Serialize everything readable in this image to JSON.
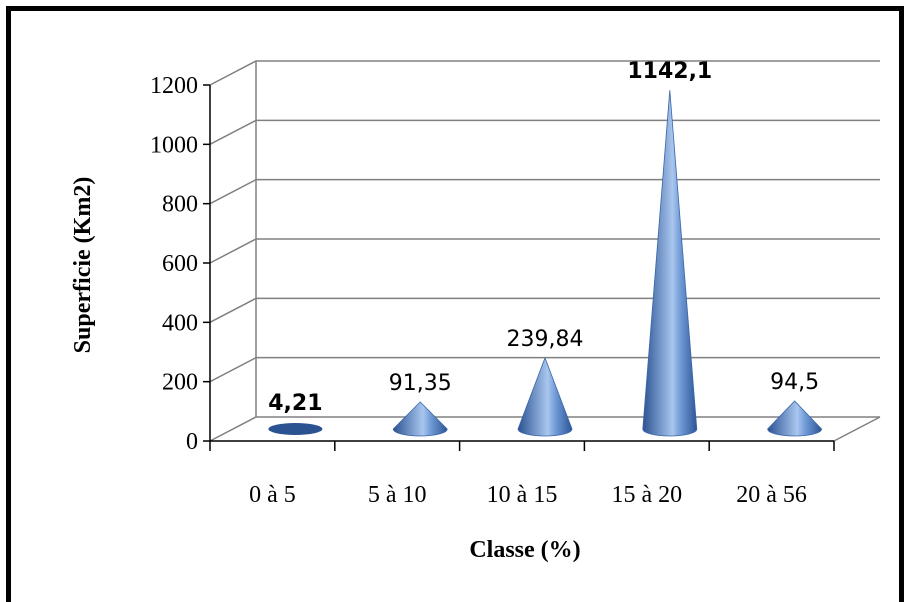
{
  "chart_data": {
    "type": "bar",
    "style": "3d-cone",
    "categories": [
      "0 à 5",
      "5 à 10",
      "10 à 15",
      "15 à 20",
      "20 à 56"
    ],
    "values": [
      4.21,
      91.35,
      239.84,
      1142.1,
      94.5
    ],
    "data_labels": [
      "4,21",
      "91,35",
      "239,84",
      "1142,1",
      "94,5"
    ],
    "bold_labels": [
      true,
      false,
      false,
      true,
      false
    ],
    "xlabel": "Classe (%)",
    "ylabel": "Superficie (Km2)",
    "ylim": [
      0,
      1200
    ],
    "yticks": [
      "0",
      "200",
      "400",
      "600",
      "800",
      "1000",
      "1200"
    ],
    "grid": true,
    "legend": "none",
    "colors": {
      "cone_dark": "#2b5392",
      "cone_mid": "#4f81c7",
      "cone_light": "#a9c6ee",
      "grid": "#808080"
    }
  }
}
